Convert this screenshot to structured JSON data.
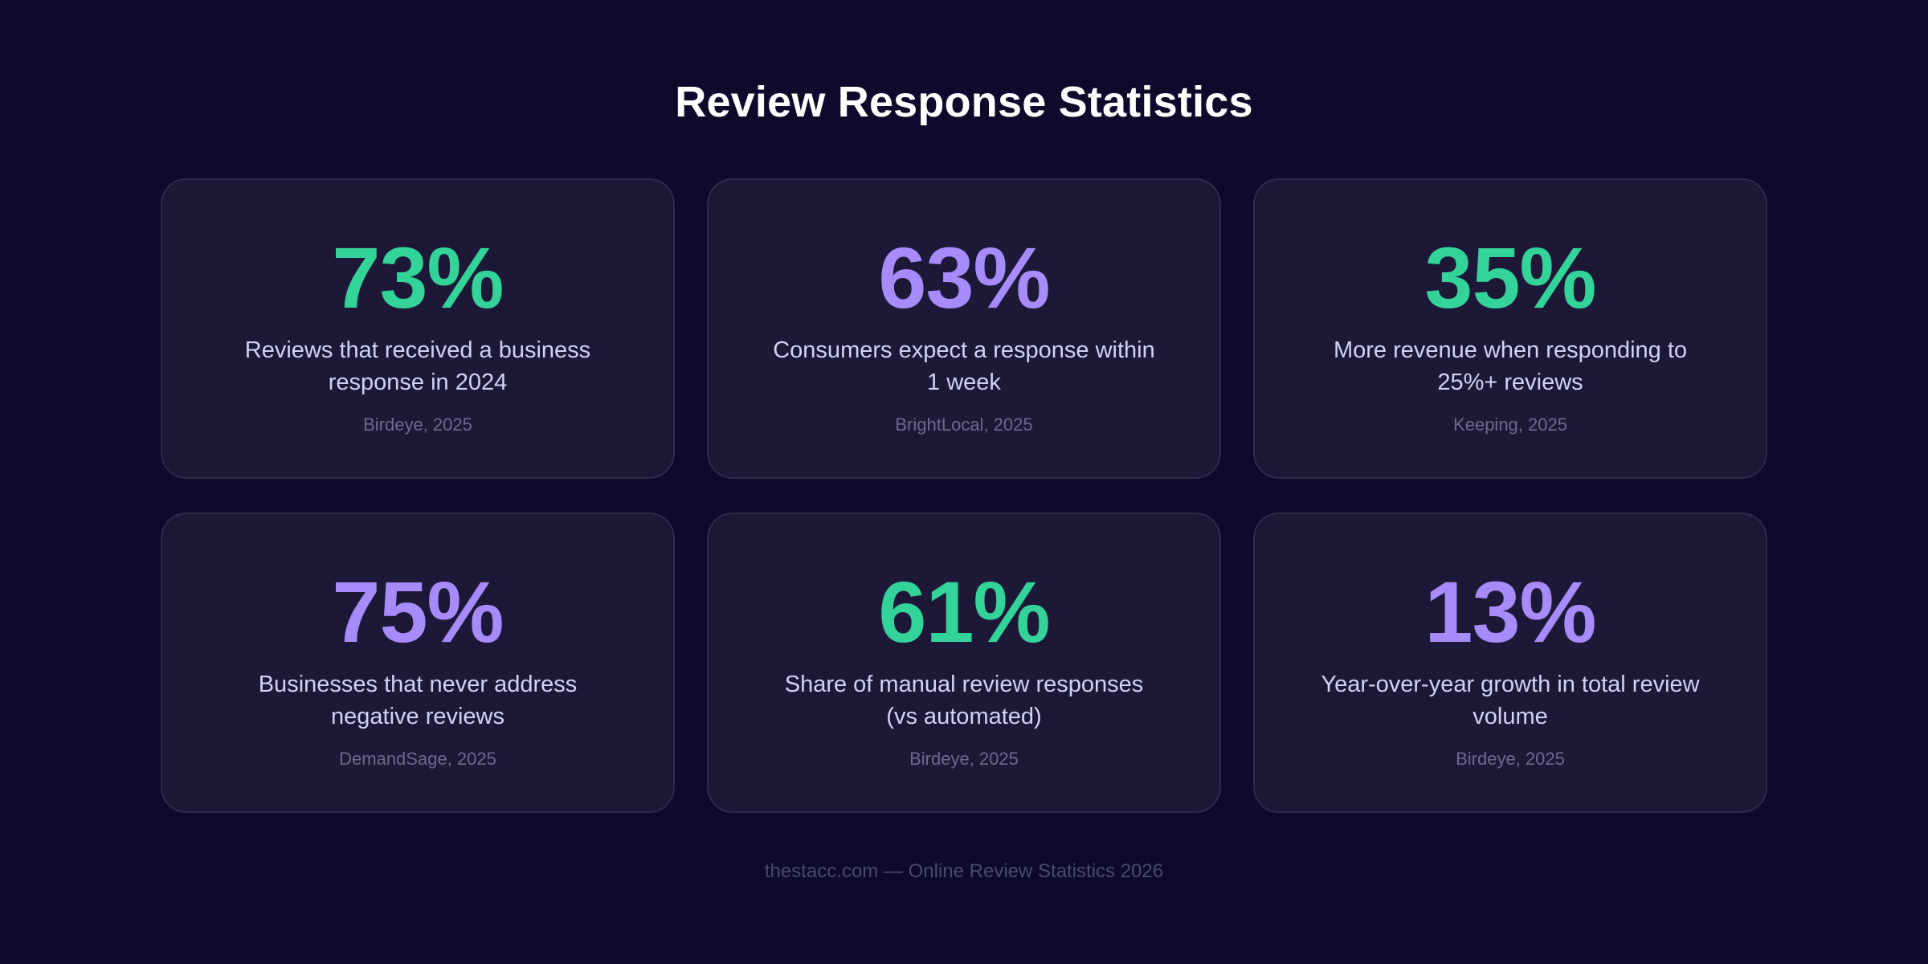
{
  "title": "Review Response Statistics",
  "accent_colors": {
    "green": "#34d399",
    "purple": "#a78bfa"
  },
  "cards": [
    {
      "value": "73%",
      "color": "green",
      "description": "Reviews that received a business response in 2024",
      "source": "Birdeye, 2025"
    },
    {
      "value": "63%",
      "color": "purple",
      "description": "Consumers expect a response within 1 week",
      "source": "BrightLocal, 2025"
    },
    {
      "value": "35%",
      "color": "green",
      "description": "More revenue when responding to 25%+ reviews",
      "source": "Keeping, 2025"
    },
    {
      "value": "75%",
      "color": "purple",
      "description": "Businesses that never address negative reviews",
      "source": "DemandSage, 2025"
    },
    {
      "value": "61%",
      "color": "green",
      "description": "Share of manual review responses (vs automated)",
      "source": "Birdeye, 2025"
    },
    {
      "value": "13%",
      "color": "purple",
      "description": "Year-over-year growth in total review volume",
      "source": "Birdeye, 2025"
    }
  ],
  "footer": "thestacc.com — Online Review Statistics 2026"
}
